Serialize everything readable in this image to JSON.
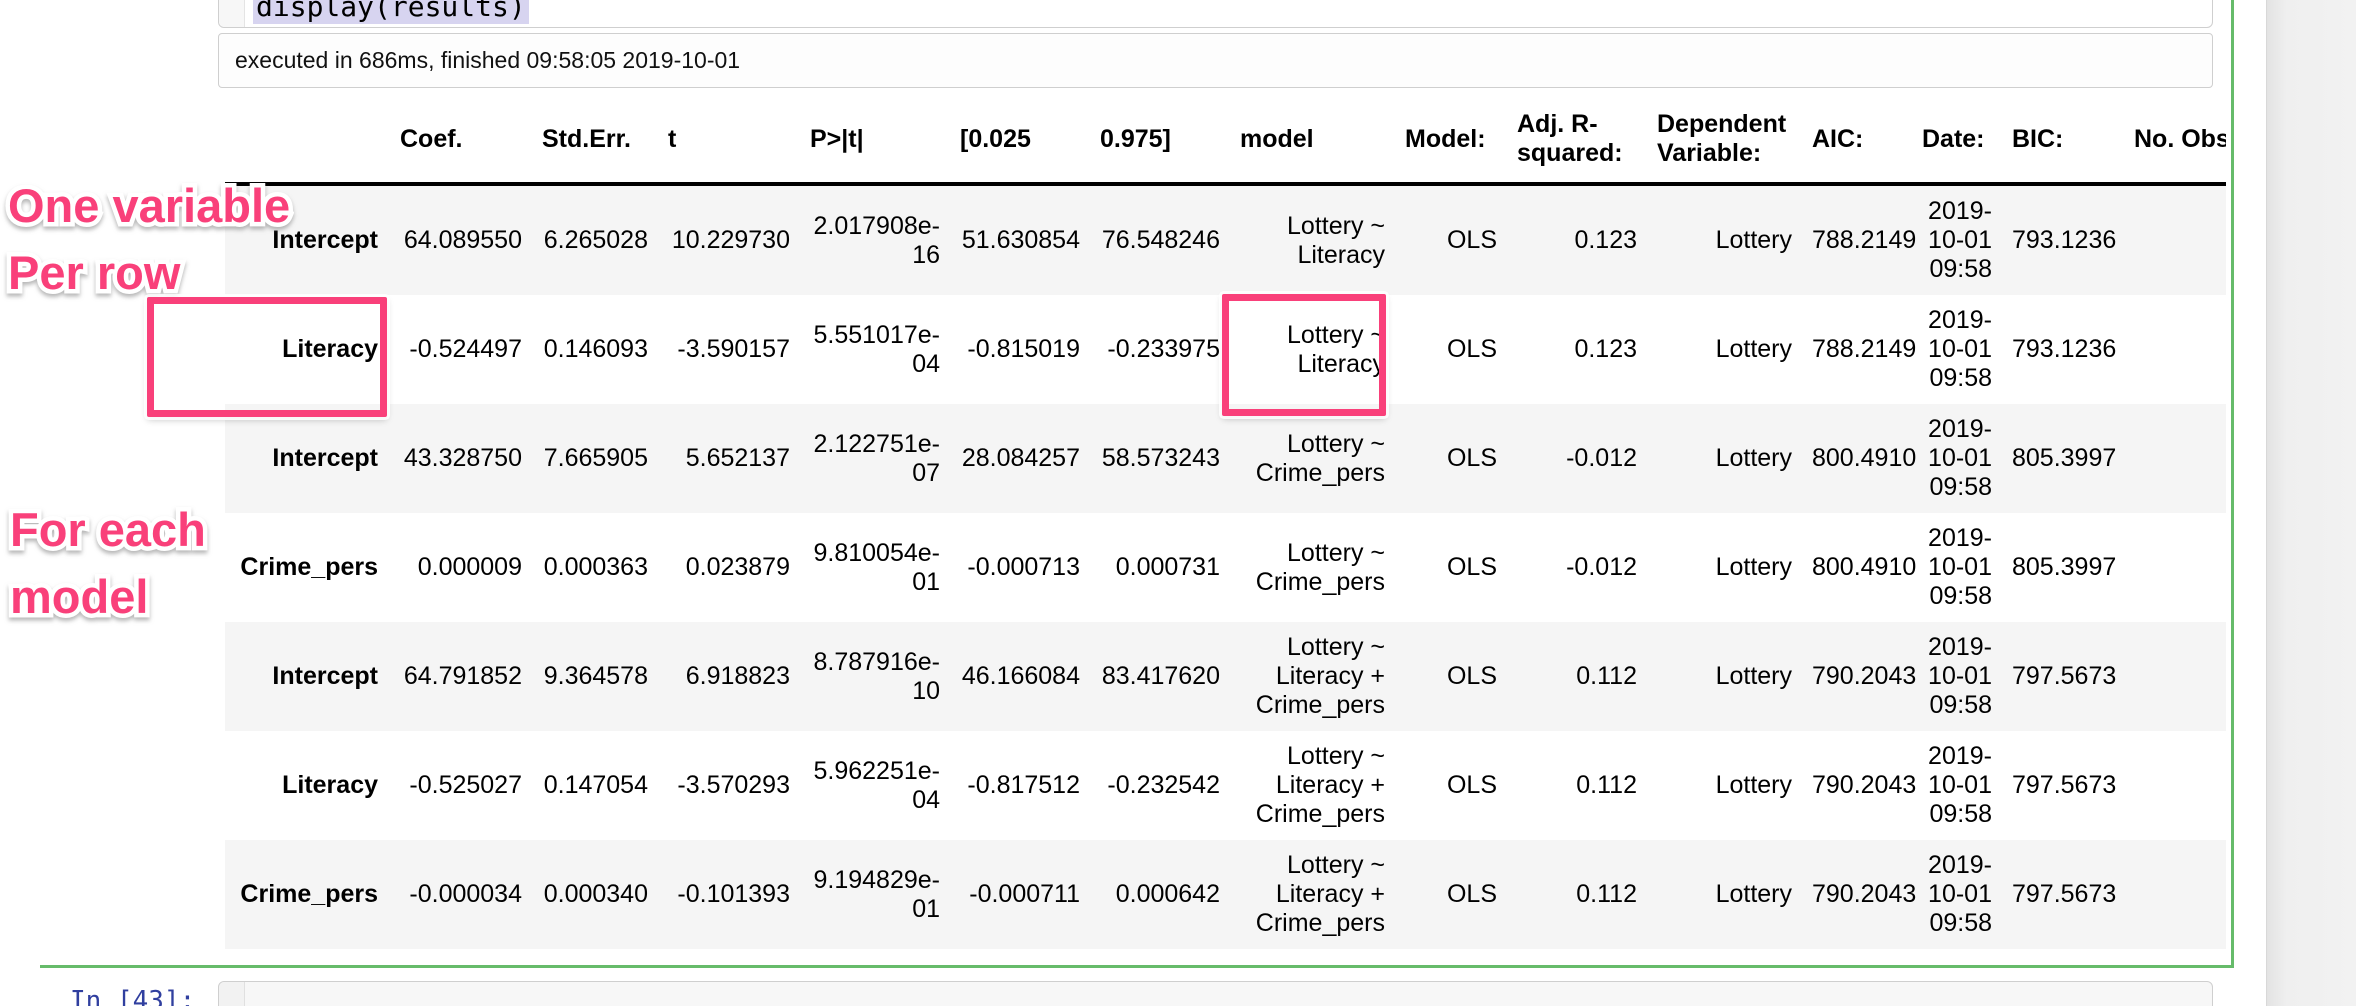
{
  "notebook": {
    "code_cell": {
      "source": "display(results)",
      "execution_note": "executed in 686ms, finished 09:58:05 2019-10-01"
    },
    "next_cell": {
      "prompt": "In [43]:"
    }
  },
  "table": {
    "columns": [
      "",
      "Coef.",
      "Std.Err.",
      "t",
      "P>|t|",
      "[0.025",
      "0.975]",
      "model",
      "Model:",
      "Adj. R-squared:",
      "Dependent Variable:",
      "AIC:",
      "Date:",
      "BIC:",
      "No. Observations:"
    ],
    "rows": [
      {
        "index": "Intercept",
        "values": [
          "64.089550",
          "6.265028",
          "10.229730",
          "2.017908e-16",
          "51.630854",
          "76.548246",
          "Lottery ~ Literacy",
          "OLS",
          "0.123",
          "Lottery",
          "788.2149",
          "2019-10-01 09:58",
          "793.1236",
          ""
        ]
      },
      {
        "index": "Literacy",
        "values": [
          "-0.524497",
          "0.146093",
          "-3.590157",
          "5.551017e-04",
          "-0.815019",
          "-0.233975",
          "Lottery ~ Literacy",
          "OLS",
          "0.123",
          "Lottery",
          "788.2149",
          "2019-10-01 09:58",
          "793.1236",
          ""
        ]
      },
      {
        "index": "Intercept",
        "values": [
          "43.328750",
          "7.665905",
          "5.652137",
          "2.122751e-07",
          "28.084257",
          "58.573243",
          "Lottery ~ Crime_pers",
          "OLS",
          "-0.012",
          "Lottery",
          "800.4910",
          "2019-10-01 09:58",
          "805.3997",
          ""
        ]
      },
      {
        "index": "Crime_pers",
        "values": [
          "0.000009",
          "0.000363",
          "0.023879",
          "9.810054e-01",
          "-0.000713",
          "0.000731",
          "Lottery ~ Crime_pers",
          "OLS",
          "-0.012",
          "Lottery",
          "800.4910",
          "2019-10-01 09:58",
          "805.3997",
          ""
        ]
      },
      {
        "index": "Intercept",
        "values": [
          "64.791852",
          "9.364578",
          "6.918823",
          "8.787916e-10",
          "46.166084",
          "83.417620",
          "Lottery ~ Literacy + Crime_pers",
          "OLS",
          "0.112",
          "Lottery",
          "790.2043",
          "2019-10-01 09:58",
          "797.5673",
          ""
        ]
      },
      {
        "index": "Literacy",
        "values": [
          "-0.525027",
          "0.147054",
          "-3.570293",
          "5.962251e-04",
          "-0.817512",
          "-0.232542",
          "Lottery ~ Literacy + Crime_pers",
          "OLS",
          "0.112",
          "Lottery",
          "790.2043",
          "2019-10-01 09:58",
          "797.5673",
          ""
        ]
      },
      {
        "index": "Crime_pers",
        "values": [
          "-0.000034",
          "0.000340",
          "-0.101393",
          "9.194829e-01",
          "-0.000711",
          "0.000642",
          "Lottery ~ Literacy + Crime_pers",
          "OLS",
          "0.112",
          "Lottery",
          "790.2043",
          "2019-10-01 09:58",
          "797.5673",
          ""
        ]
      }
    ]
  },
  "annotations": {
    "accent_color": "#F9407A",
    "note_top": {
      "text": "One variable\nPer row"
    },
    "note_left": {
      "text": "For each\nmodel"
    }
  },
  "colors": {
    "selected_cell_border": "#66BB6A",
    "row_stripe": "#F5F5F5",
    "code_selection": "#D7D4F0",
    "prompt_blue": "#303F9F"
  }
}
